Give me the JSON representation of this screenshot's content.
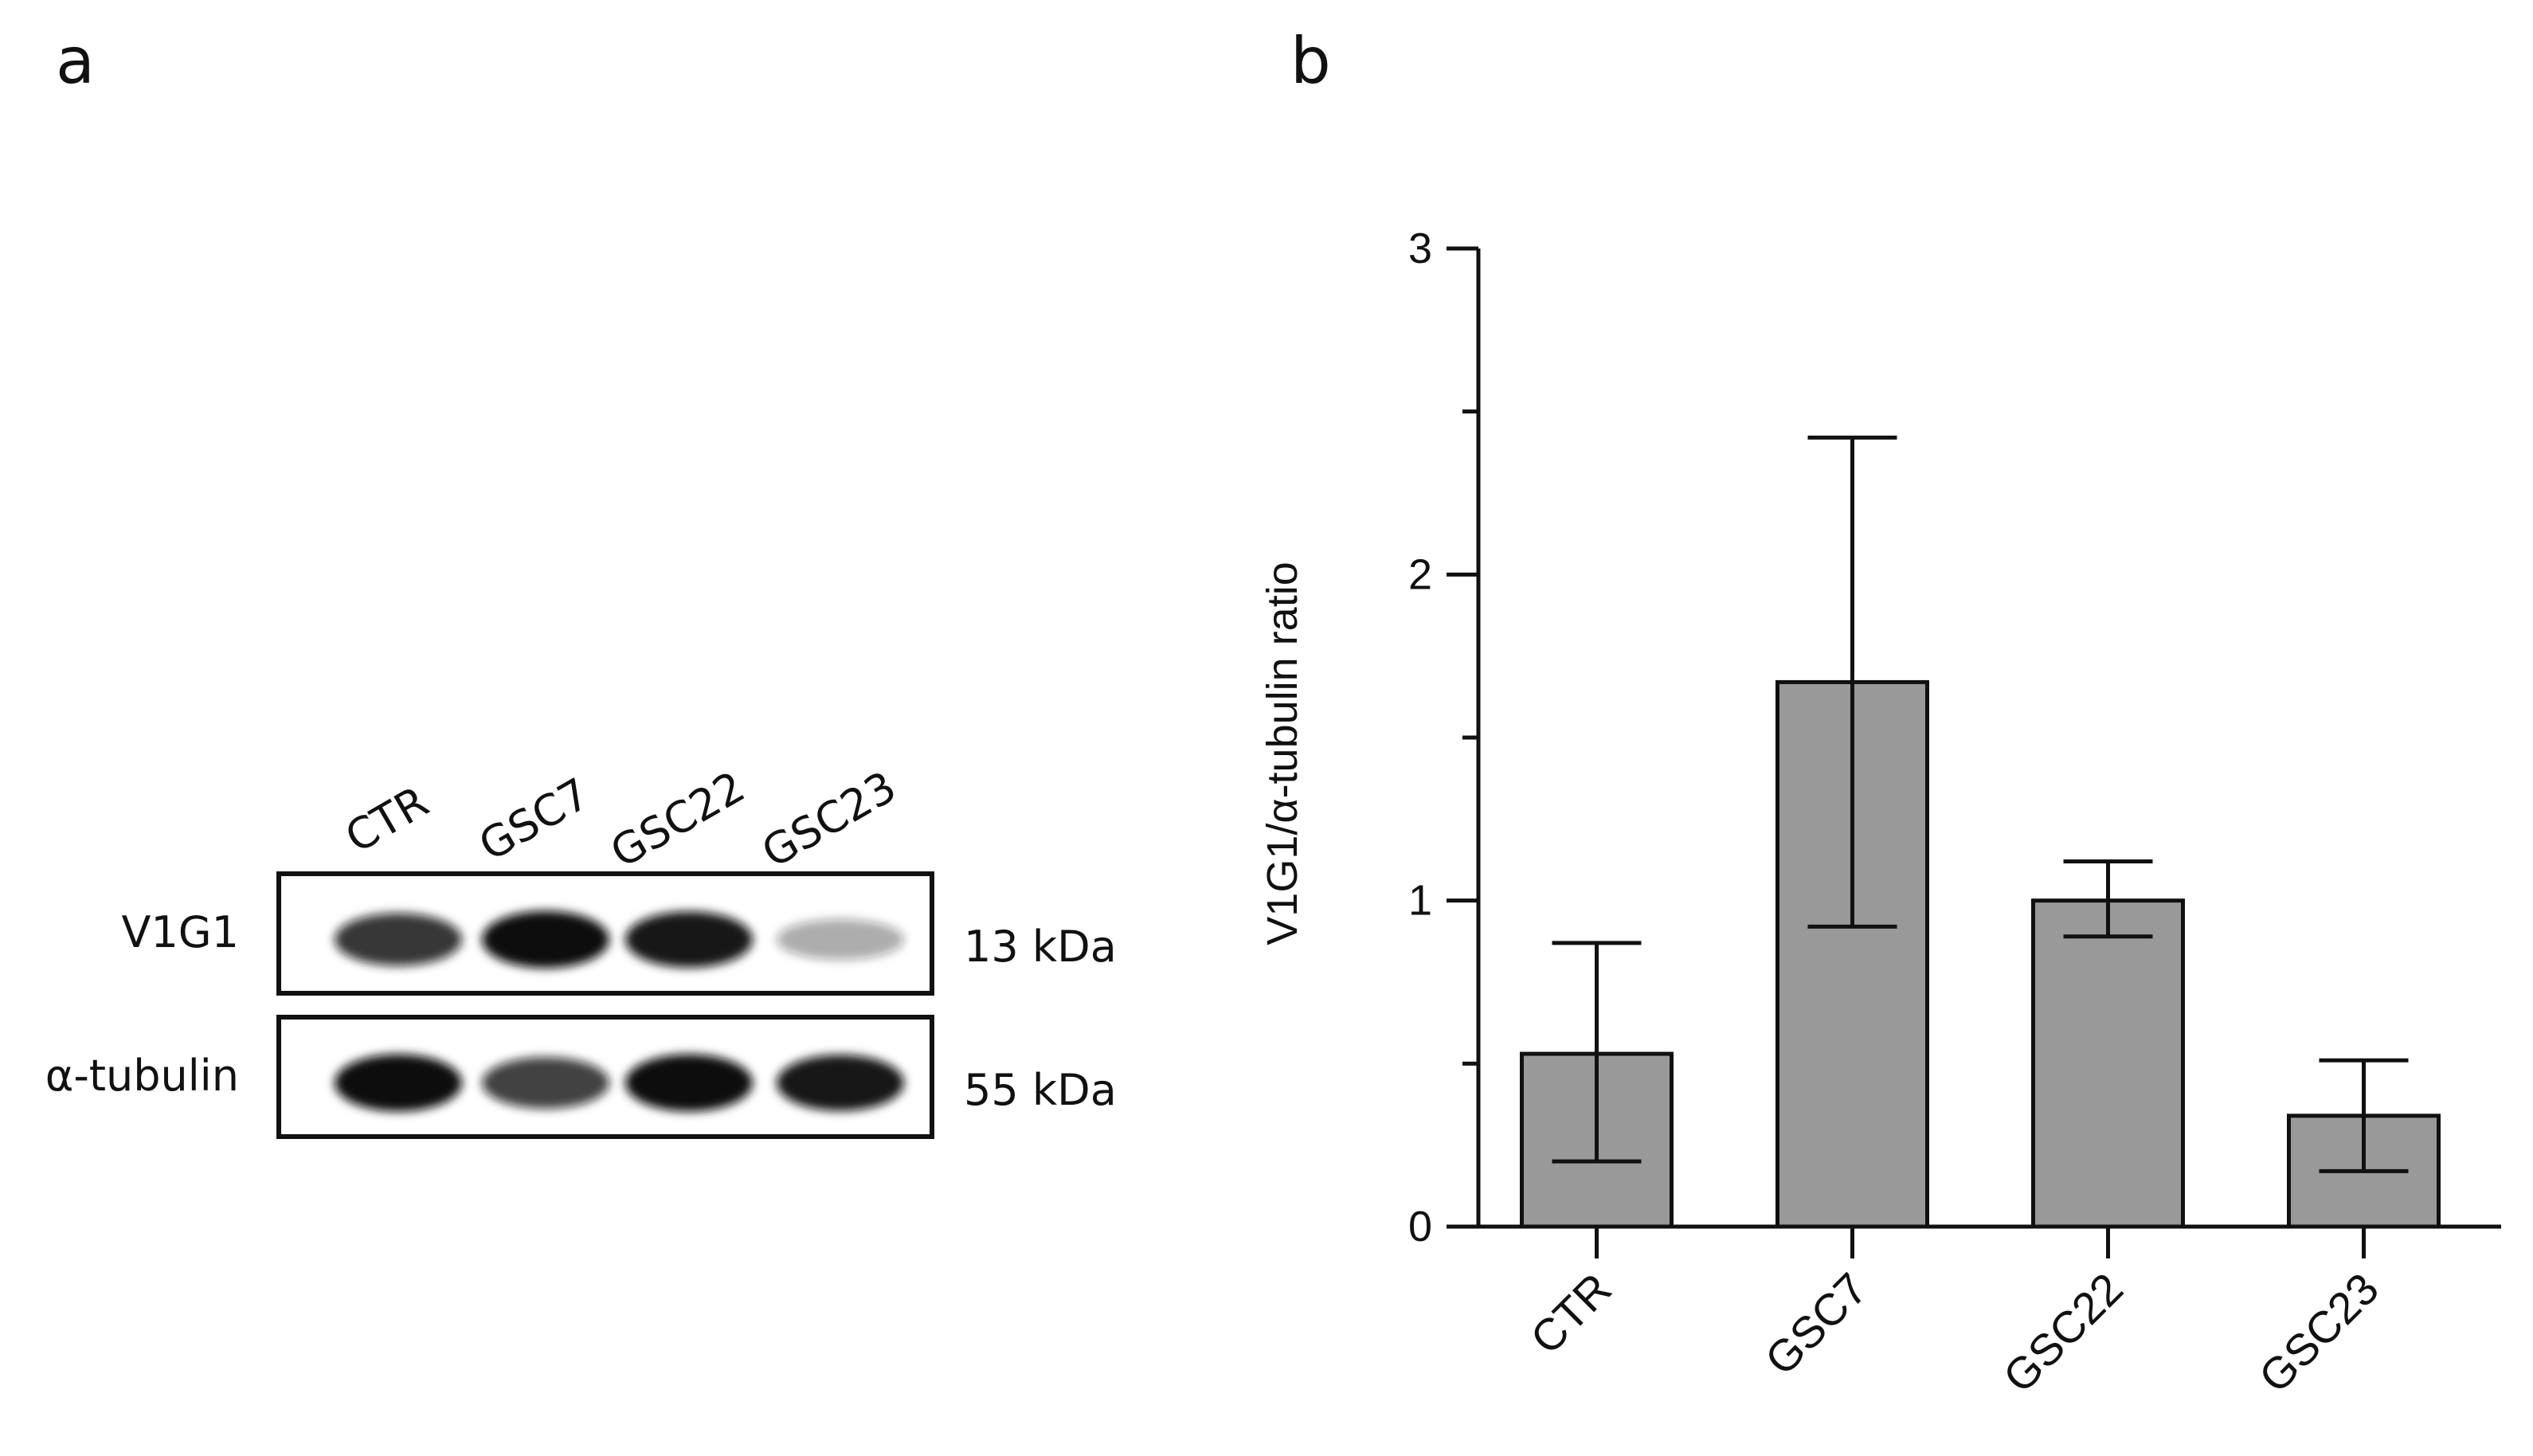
{
  "panels": {
    "a": {
      "letter": "a"
    },
    "b": {
      "letter": "b"
    }
  },
  "blot": {
    "lanes": [
      "CTR",
      "GSC7",
      "GSC22",
      "GSC23"
    ],
    "rows": [
      {
        "label": "V1G1",
        "mw": "13 kDa",
        "band_intensity": [
          0.8,
          1.0,
          0.95,
          0.25
        ]
      },
      {
        "label": "α-tubulin",
        "mw": "55 kDa",
        "band_intensity": [
          1.0,
          0.75,
          1.0,
          0.95
        ]
      }
    ],
    "band_color": "#111111"
  },
  "chart_data": {
    "type": "bar",
    "title": "",
    "xlabel": "",
    "ylabel": "V1G1/α-tubulin ratio",
    "categories": [
      "CTR",
      "GSC7",
      "GSC22",
      "GSC23"
    ],
    "values": [
      0.53,
      1.67,
      1.0,
      0.34
    ],
    "error_upper": [
      0.87,
      2.42,
      1.12,
      0.51
    ],
    "error_lower": [
      0.2,
      0.92,
      0.89,
      0.17
    ],
    "ylim": [
      0,
      3
    ],
    "yticks": [
      "0",
      "1",
      "2",
      "3"
    ],
    "bar_color": "#999999",
    "grid": false
  }
}
